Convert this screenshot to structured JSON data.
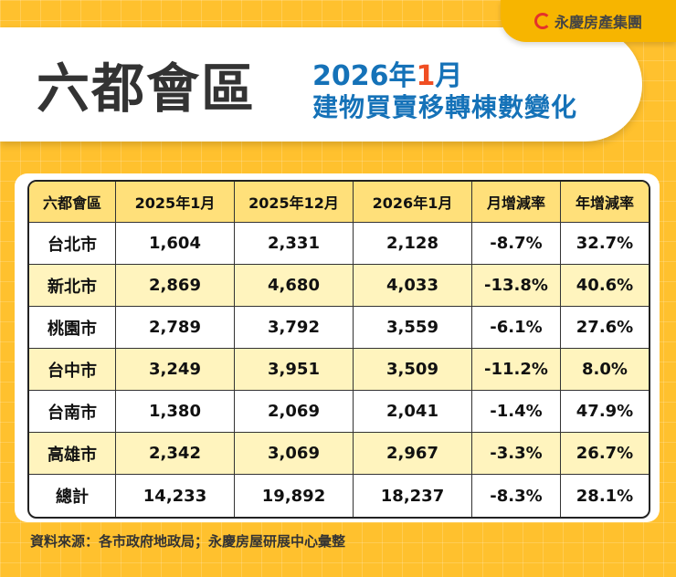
{
  "logo": {
    "text": "永慶房產集團"
  },
  "header": {
    "title": "六都會區",
    "subtitle_year": "2026年",
    "subtitle_month": "1",
    "subtitle_month_suffix": "月",
    "subtitle2": "建物買賣移轉棟數變化"
  },
  "table": {
    "columns": [
      "六都會區",
      "2025年1月",
      "2025年12月",
      "2026年1月",
      "月增減率",
      "年增減率"
    ],
    "rows": [
      [
        "台北市",
        "1,604",
        "2,331",
        "2,128",
        "-8.7%",
        "32.7%"
      ],
      [
        "新北市",
        "2,869",
        "4,680",
        "4,033",
        "-13.8%",
        "40.6%"
      ],
      [
        "桃園市",
        "2,789",
        "3,792",
        "3,559",
        "-6.1%",
        "27.6%"
      ],
      [
        "台中市",
        "3,249",
        "3,951",
        "3,509",
        "-11.2%",
        "8.0%"
      ],
      [
        "台南市",
        "1,380",
        "2,069",
        "2,041",
        "-1.4%",
        "47.9%"
      ],
      [
        "高雄市",
        "2,342",
        "3,069",
        "2,967",
        "-3.3%",
        "26.7%"
      ],
      [
        "總計",
        "14,233",
        "19,892",
        "18,237",
        "-8.3%",
        "28.1%"
      ]
    ]
  },
  "footer": {
    "source": "資料來源：各市政府地政局；永慶房屋研展中心彙整"
  },
  "colors": {
    "background": "#FFC12E",
    "title_blue": "#1572B8",
    "accent_orange": "#F04E23",
    "header_row": "#FFE07A",
    "alt_row": "#FFF4BE"
  }
}
